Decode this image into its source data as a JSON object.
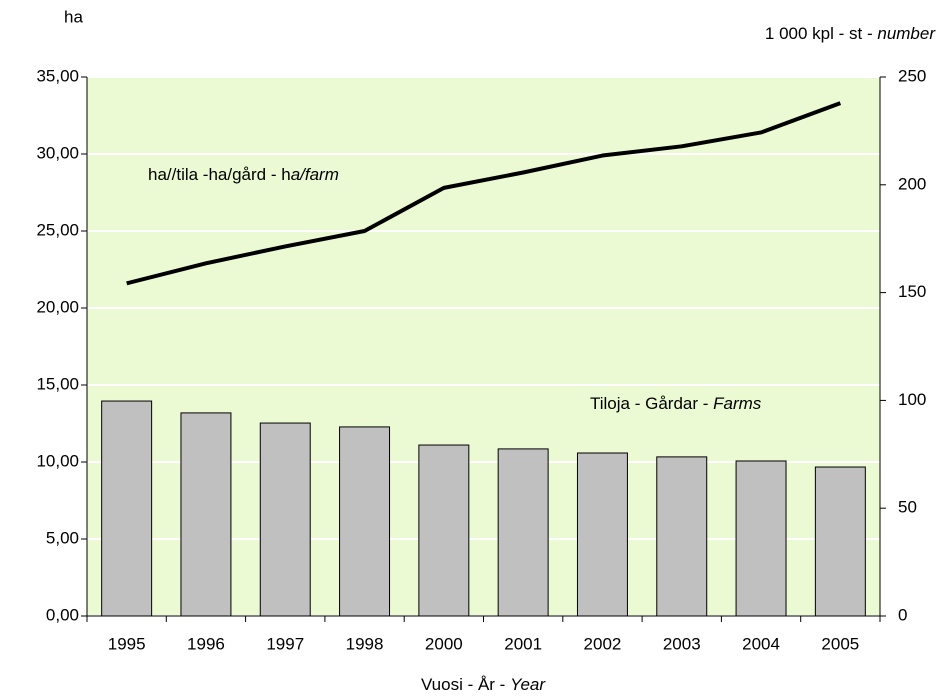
{
  "chart_data": {
    "type": "bar_line",
    "y_label": "ha",
    "y2_label": "1 000 kpl - st - ",
    "y2_label_italic": "number",
    "x_label": "Vuosi - År - ",
    "x_label_italic": "Year",
    "categories": [
      "1995",
      "1996",
      "1997",
      "1998",
      "2000",
      "2001",
      "2002",
      "2003",
      "2004",
      "2005"
    ],
    "series": [
      {
        "name": "ha//tila -ha/gård - h",
        "name_italic": "a/farm",
        "type": "line",
        "axis": "y",
        "color": "#000000",
        "values": [
          21.6,
          22.9,
          24.0,
          25.0,
          27.8,
          28.8,
          29.9,
          30.5,
          31.4,
          33.3
        ]
      },
      {
        "name": "Tiloja - Gårdar - ",
        "name_italic": "Farms",
        "type": "bar",
        "axis": "y2",
        "color": "#c0c0c0",
        "values": [
          99.7,
          94.2,
          89.5,
          87.7,
          79.3,
          77.5,
          75.6,
          73.8,
          71.9,
          69.1
        ]
      }
    ],
    "ylim": [
      0,
      35
    ],
    "yticks": [
      {
        "value": 0,
        "label": "0,00"
      },
      {
        "value": 5,
        "label": "5,00"
      },
      {
        "value": 10,
        "label": "10,00"
      },
      {
        "value": 15,
        "label": "15,00"
      },
      {
        "value": 20,
        "label": "20,00"
      },
      {
        "value": 25,
        "label": "25,00"
      },
      {
        "value": 30,
        "label": "30,00"
      },
      {
        "value": 35,
        "label": "35,00"
      }
    ],
    "y2lim": [
      0,
      250
    ],
    "y2ticks": [
      0,
      50,
      100,
      150,
      200,
      250
    ],
    "grid": true,
    "plot_background": "#ebfad2"
  }
}
